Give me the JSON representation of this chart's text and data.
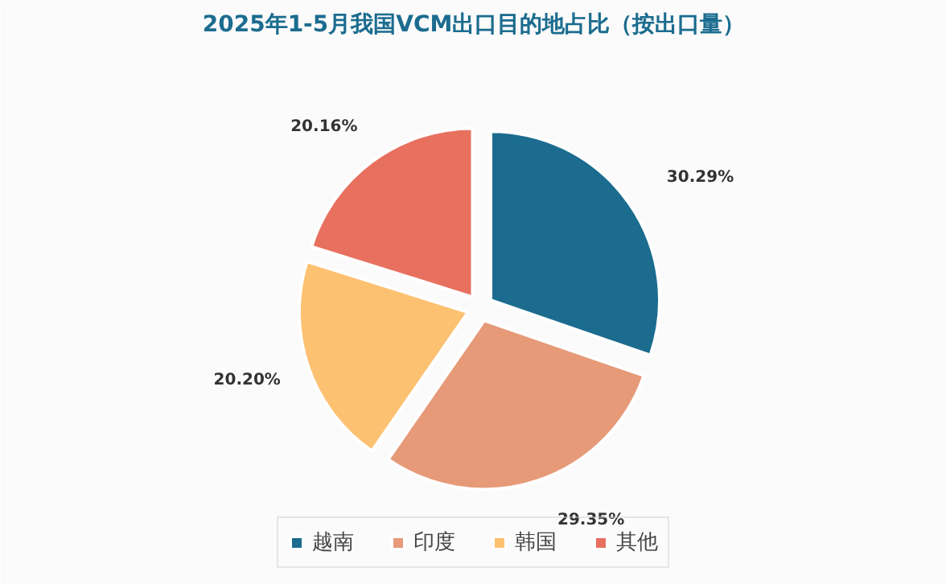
{
  "chart_data": {
    "type": "pie",
    "title": "2025年1-5月我国VCM出口目的地占比（按出口量）",
    "categories": [
      "越南",
      "印度",
      "韩国",
      "其他"
    ],
    "values": [
      30.29,
      29.35,
      20.2,
      20.16
    ],
    "colors": [
      "#1b6c8f",
      "#e69a78",
      "#fdc172",
      "#e8705f"
    ],
    "value_labels": [
      "30.29%",
      "29.35%",
      "20.20%",
      "20.16%"
    ],
    "legend": "bottom"
  }
}
